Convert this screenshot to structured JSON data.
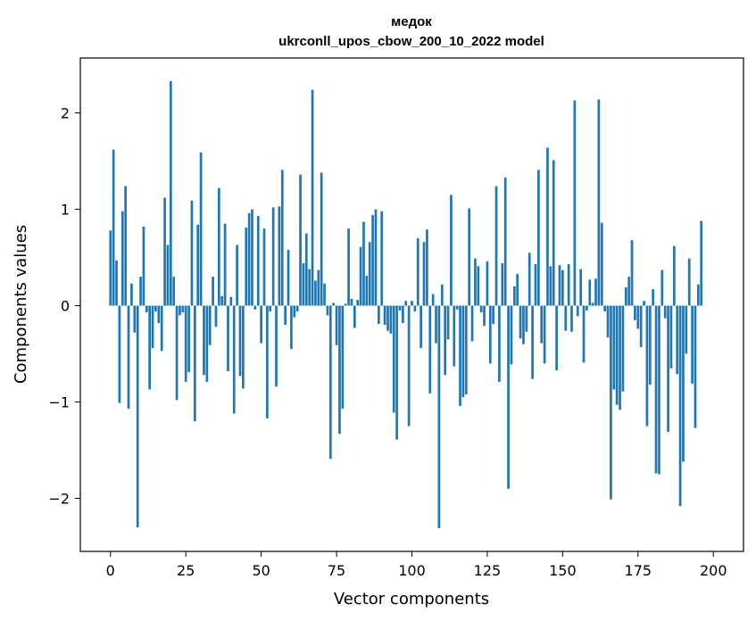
{
  "chart_data": {
    "type": "bar",
    "title_line1": "медок",
    "title_line2": "ukrconll_upos_cbow_200_10_2022 model",
    "xlabel": "Vector components",
    "ylabel": "Components values",
    "xlim": [
      -10,
      210
    ],
    "ylim": [
      -2.55,
      2.57
    ],
    "xticks": [
      0,
      25,
      50,
      75,
      100,
      125,
      150,
      175,
      200
    ],
    "xtick_labels": [
      "0",
      "25",
      "50",
      "75",
      "100",
      "125",
      "150",
      "175",
      "200"
    ],
    "yticks": [
      -2,
      -1,
      0,
      1,
      2
    ],
    "ytick_labels": [
      "−2",
      "−1",
      "0",
      "1",
      "2"
    ],
    "bar_color": "#1f77b4",
    "values": [
      0.78,
      1.62,
      0.47,
      -1.01,
      0.98,
      1.24,
      -1.07,
      0.23,
      -0.28,
      -2.3,
      0.3,
      0.82,
      -0.07,
      -0.87,
      -0.44,
      -0.06,
      -0.18,
      -0.47,
      1.12,
      0.63,
      2.33,
      0.3,
      -0.98,
      -0.1,
      -0.07,
      -0.79,
      -0.69,
      1.09,
      -1.2,
      0.84,
      1.59,
      -0.72,
      -0.79,
      -0.41,
      0.3,
      -0.22,
      1.22,
      0.1,
      0.85,
      -0.68,
      0.09,
      -1.12,
      0.63,
      -0.73,
      -0.86,
      0.81,
      0.96,
      1.0,
      -0.04,
      0.93,
      -0.39,
      0.8,
      -1.17,
      -0.06,
      1.02,
      -0.84,
      1.03,
      1.41,
      -0.2,
      0.58,
      -0.45,
      -0.12,
      -0.06,
      1.36,
      0.44,
      0.75,
      0.38,
      2.24,
      0.26,
      0.37,
      1.38,
      0.23,
      -0.1,
      -1.59,
      0.03,
      -0.41,
      -1.33,
      -1.07,
      0.02,
      0.8,
      0.07,
      -0.23,
      0.06,
      0.61,
      0.87,
      0.31,
      0.66,
      0.94,
      1.0,
      -0.19,
      0.98,
      -0.2,
      -0.26,
      -0.29,
      -1.11,
      -1.39,
      -0.05,
      -0.18,
      0.05,
      -1.25,
      0.05,
      -0.06,
      0.7,
      -0.44,
      0.66,
      0.79,
      -0.91,
      0.12,
      -0.39,
      -2.31,
      0.22,
      -0.72,
      -0.35,
      1.15,
      -0.63,
      -0.04,
      -1.04,
      -0.95,
      -0.92,
      1.01,
      -0.37,
      0.49,
      0.41,
      -0.07,
      -0.21,
      0.46,
      -0.6,
      -0.19,
      1.24,
      -0.79,
      0.44,
      1.33,
      -1.9,
      -0.61,
      0.2,
      0.33,
      -0.34,
      -0.4,
      -0.27,
      0.55,
      -0.76,
      0.43,
      1.41,
      -0.39,
      -0.6,
      1.64,
      0.41,
      1.51,
      -0.67,
      0.42,
      0.37,
      -0.26,
      0.43,
      -0.27,
      2.13,
      -0.11,
      0.38,
      -0.59,
      -0.05,
      0.27,
      0.03,
      0.28,
      2.14,
      0.86,
      -0.06,
      -0.33,
      -2.01,
      -0.87,
      -1.03,
      -1.08,
      -0.89,
      0.19,
      0.3,
      0.68,
      -0.15,
      -0.24,
      -0.43,
      0.05,
      -1.25,
      -0.82,
      0.17,
      -1.74,
      -1.75,
      0.37,
      -0.13,
      -1.31,
      -0.65,
      0.62,
      -0.71,
      -2.08,
      -1.62,
      -0.5,
      0.49,
      -0.81,
      -1.27,
      0.22,
      0.88
    ]
  }
}
